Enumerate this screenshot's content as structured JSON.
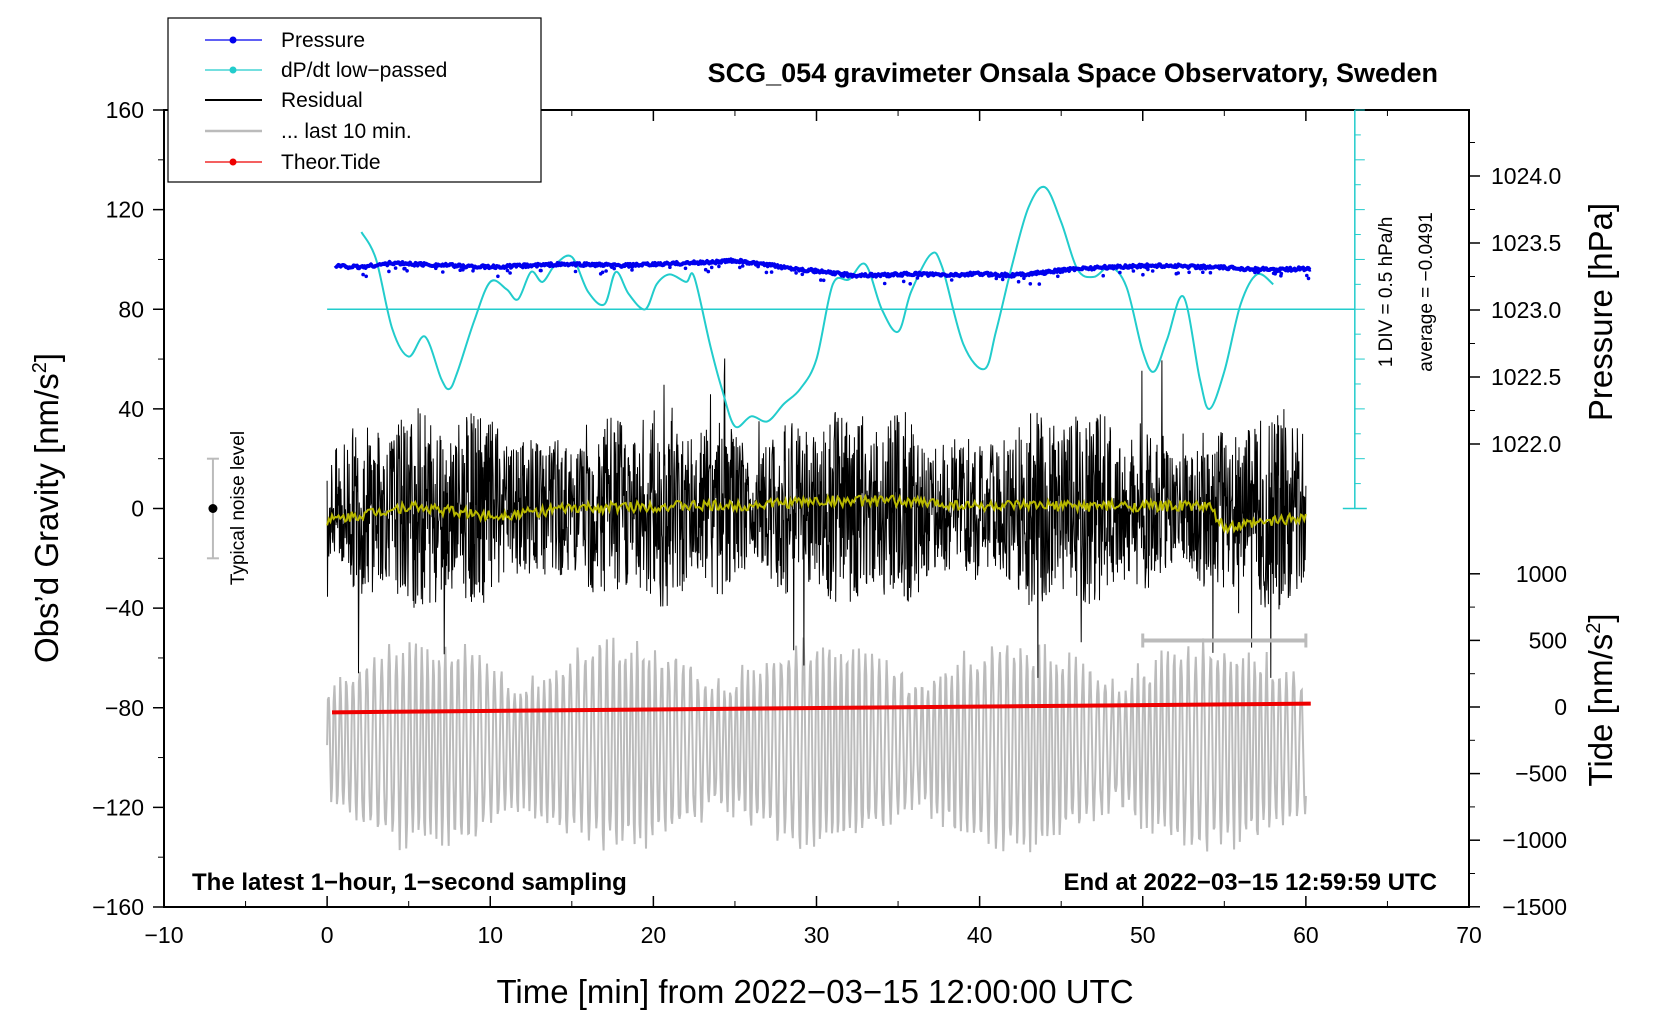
{
  "chart_data": {
    "type": "line",
    "title": "SCG_054 gravimeter Onsala Space Observatory, Sweden",
    "xlabel": "Time [min] from 2022−03−15 12:00:00 UTC",
    "ylabel_left_main": "Obs’d Gravity [nm/s",
    "ylabel_left_sup": "2",
    "ylabel_left_end": "]",
    "ylabel_right_pressure": "Pressure [hPa]",
    "ylabel_right_tide_main": "Tide [nm/s",
    "ylabel_right_tide_sup": "2",
    "ylabel_right_tide_end": "]",
    "xlim": [
      -10,
      70
    ],
    "ylim_left": [
      -160,
      160
    ],
    "pressure_axis_range": [
      1022.0,
      1024.0
    ],
    "tide_axis_range": [
      -1500,
      1000
    ],
    "x_ticks": [
      "−10",
      "0",
      "10",
      "20",
      "30",
      "40",
      "50",
      "60",
      "70"
    ],
    "x_tick_values": [
      -10,
      0,
      10,
      20,
      30,
      40,
      50,
      60,
      70
    ],
    "y_left_ticks": [
      "160",
      "120",
      "80",
      "40",
      "0",
      "−40",
      "−80",
      "−120",
      "−160"
    ],
    "y_left_tick_values": [
      160,
      120,
      80,
      40,
      0,
      -40,
      -80,
      -120,
      -160
    ],
    "pressure_ticks": [
      "1024.0",
      "1023.5",
      "1023.0",
      "1022.5",
      "1022.0"
    ],
    "pressure_tick_values": [
      1024.0,
      1023.5,
      1023.0,
      1022.5,
      1022.0
    ],
    "tide_ticks": [
      "1000",
      "500",
      "0",
      "−500",
      "−1000",
      "−1500"
    ],
    "tide_tick_values": [
      1000,
      500,
      0,
      -500,
      -1000,
      -1500
    ],
    "legend_position": "top-left",
    "legend": [
      {
        "label": "Pressure",
        "color": "#0000ee",
        "marker": true
      },
      {
        "label": "dP/dt low−passed",
        "color": "#22cccc",
        "marker": true
      },
      {
        "label": "Residual",
        "color": "#000000",
        "marker": false
      },
      {
        "label": "... last 10 min.",
        "color": "#bbbbbb",
        "marker": false
      },
      {
        "label": "Theor.Tide",
        "color": "#ee0000",
        "marker": true
      }
    ],
    "series": [
      {
        "name": "Pressure",
        "color": "#0000ee",
        "axis": "pressure",
        "x": [
          0.5,
          2,
          4,
          6,
          8,
          10,
          12,
          14,
          16,
          18,
          20,
          22,
          24,
          25,
          26,
          28,
          30,
          32,
          34,
          36,
          38,
          40,
          42,
          44,
          46,
          48,
          50,
          52,
          54,
          56,
          58,
          60.3
        ],
        "y": [
          1023.33,
          1023.32,
          1023.35,
          1023.34,
          1023.33,
          1023.32,
          1023.33,
          1023.34,
          1023.34,
          1023.33,
          1023.34,
          1023.35,
          1023.36,
          1023.37,
          1023.35,
          1023.32,
          1023.29,
          1023.26,
          1023.26,
          1023.27,
          1023.26,
          1023.27,
          1023.26,
          1023.28,
          1023.31,
          1023.32,
          1023.33,
          1023.33,
          1023.32,
          1023.31,
          1023.3,
          1023.31
        ]
      },
      {
        "name": "dP/dt low−passed",
        "color": "#22cccc",
        "axis": "gravity",
        "x": [
          2.1,
          3,
          4,
          5,
          6,
          7,
          7.5,
          8,
          9,
          10,
          11,
          11.7,
          12.5,
          13.2,
          14,
          15,
          16,
          17,
          17.7,
          18.5,
          19.5,
          20.2,
          21,
          22,
          22.5,
          23.5,
          24.2,
          25,
          26,
          27,
          28,
          29,
          30,
          31,
          32,
          33,
          34,
          35,
          35.8,
          37,
          37.7,
          39,
          40.3,
          41,
          42,
          43,
          44,
          45,
          46,
          47,
          48,
          49,
          50,
          50.7,
          51.5,
          52.5,
          53.5,
          54.1,
          55,
          56,
          57,
          58
        ],
        "y": [
          111,
          100,
          72,
          61,
          69,
          52,
          48,
          55,
          75,
          91,
          88,
          84,
          95,
          91,
          98,
          101,
          87,
          82,
          95,
          86,
          80,
          90,
          94,
          91,
          93,
          65,
          48,
          33,
          37,
          35,
          42,
          48,
          60,
          90,
          92,
          98,
          80,
          71,
          87,
          102,
          97,
          66,
          56,
          71,
          98,
          121,
          129,
          115,
          96,
          93,
          97,
          89,
          63,
          55,
          68,
          85,
          52,
          40,
          55,
          82,
          94,
          90
        ]
      },
      {
        "name": "Residual",
        "color": "#000000",
        "axis": "gravity",
        "x_range": [
          0,
          60
        ],
        "y_range": [
          -68,
          66
        ]
      },
      {
        "name": "low-passed residual",
        "color": "#b8b800",
        "axis": "gravity",
        "x": [
          0,
          5,
          10,
          15,
          20,
          25,
          30,
          35,
          40,
          45,
          50,
          54,
          55,
          58,
          60
        ],
        "y": [
          -5,
          1,
          -3,
          0,
          1,
          1,
          3,
          3,
          1,
          1,
          1,
          1,
          -8,
          -5,
          -3
        ]
      },
      {
        "name": "... last 10 min.",
        "color": "#bbbbbb",
        "axis": "gravity",
        "x_range": [
          0,
          60
        ],
        "y_range": [
          -148,
          -44
        ]
      },
      {
        "name": "Theor.Tide",
        "color": "#ee0000",
        "axis": "tide",
        "x": [
          0.3,
          60.3
        ],
        "y": [
          -40,
          25
        ]
      },
      {
        "name": "dP/dt zero line",
        "color": "#22cccc",
        "axis": "gravity",
        "x": [
          0,
          63
        ],
        "y": [
          80,
          80
        ]
      }
    ],
    "annotations": {
      "noise_label": "Typical noise level",
      "noise_bar": {
        "x": -7,
        "center": 0,
        "half_range": 20
      },
      "last10_range_bar": {
        "x_start": 50,
        "x_end": 60,
        "y": -53
      },
      "scale_note_1": "1 DIV = 0.5 hPa/h",
      "scale_note_2": "average = −0.0491",
      "bottom_left": "The latest 1−hour, 1−second sampling",
      "bottom_right": "End at 2022−03−15 12:59:59 UTC"
    }
  }
}
